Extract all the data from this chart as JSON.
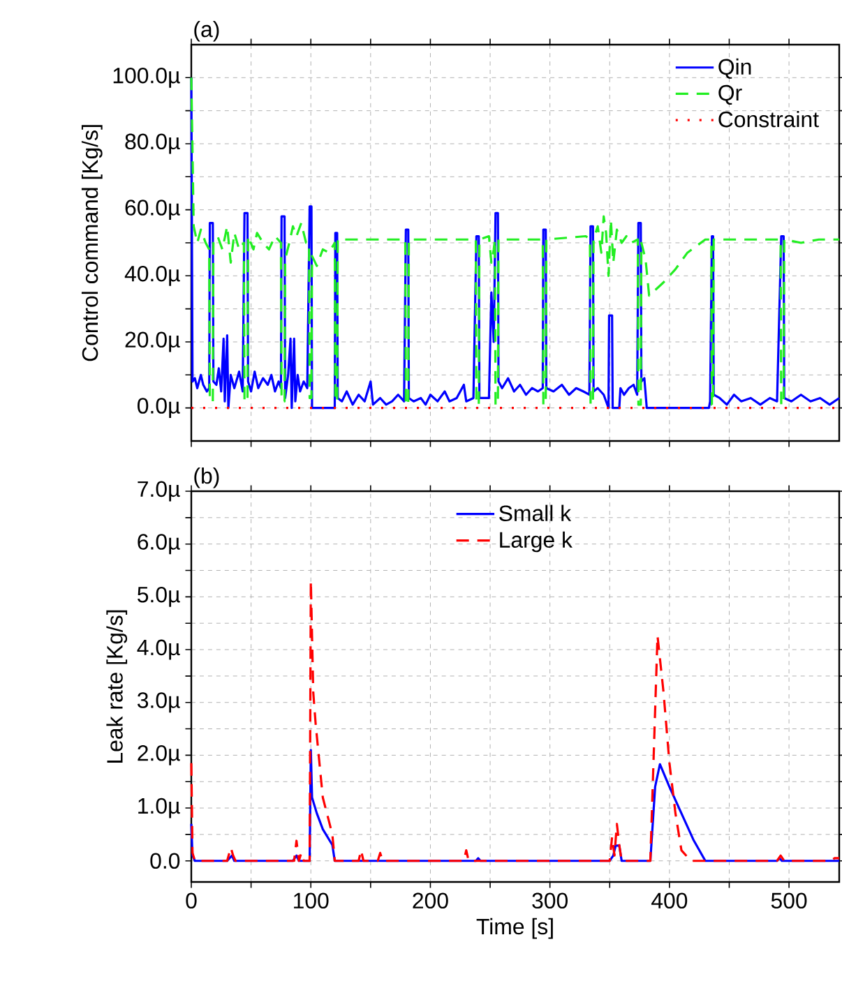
{
  "chart_data": [
    {
      "type": "line",
      "ylabel": "Control command [Kg/s]",
      "annotations": [
        "(a)"
      ],
      "tick_labels": "y",
      "grid": true,
      "legend": "top right",
      "xlim": [
        0,
        542
      ],
      "ylim": [
        -10,
        110
      ],
      "xticks": [
        0,
        {
          "value": 50,
          "label": null
        },
        100,
        {
          "value": 150,
          "label": null
        },
        200,
        {
          "value": 250,
          "label": null
        },
        300,
        {
          "value": 350,
          "label": null
        },
        400,
        {
          "value": 450,
          "label": null
        },
        500
      ],
      "yticks": [
        {
          "value": 0,
          "label": "0.0µ"
        },
        {
          "value": 10,
          "label": null
        },
        {
          "value": 20,
          "label": "20.0µ"
        },
        {
          "value": 30,
          "label": null
        },
        {
          "value": 40,
          "label": "40.0µ"
        },
        {
          "value": 50,
          "label": null
        },
        {
          "value": 60,
          "label": "60.0µ"
        },
        {
          "value": 70,
          "label": null
        },
        {
          "value": 80,
          "label": "80.0µ"
        },
        {
          "value": 90,
          "label": null
        },
        {
          "value": 100,
          "label": "100.0µ"
        }
      ],
      "series": [
        {
          "name": "Qin",
          "color": "#0000ff",
          "line_style": "solid",
          "x": [
            0,
            1,
            3,
            5,
            8,
            10,
            13,
            15,
            15.5,
            18,
            18.5,
            21,
            23,
            25,
            27,
            28,
            30,
            31,
            33,
            36,
            40,
            43,
            44.5,
            47,
            47.5,
            50,
            53,
            56,
            60,
            64,
            67,
            70,
            73,
            75,
            75.5,
            78,
            78.5,
            81,
            83,
            84,
            86,
            87,
            89,
            91,
            94,
            97,
            99,
            100.5,
            101,
            120,
            120.5,
            122,
            122.5,
            126,
            130,
            135,
            140,
            145,
            150,
            152,
            158,
            163,
            168,
            173,
            178,
            179.5,
            181.5,
            182,
            186,
            192,
            196,
            200,
            206,
            212,
            216,
            222,
            228,
            230,
            236,
            238.5,
            240.5,
            241,
            249,
            251,
            253,
            254.5,
            256.5,
            257,
            260,
            265,
            270,
            275,
            280,
            285,
            290,
            294,
            294.5,
            296.5,
            297,
            303,
            310,
            316,
            322,
            328,
            333,
            334,
            336,
            336.5,
            340,
            345,
            349,
            349.5,
            352,
            352.5,
            358,
            359,
            362,
            366,
            370,
            373,
            374,
            376,
            376.5,
            379,
            381,
            433,
            434,
            435.5,
            436.5,
            437,
            442,
            448,
            454,
            460,
            468,
            476,
            484,
            490,
            493.5,
            495.5,
            496,
            502,
            510,
            518,
            526,
            534,
            542
          ],
          "values": [
            100,
            8,
            9,
            6,
            10,
            7,
            5,
            6,
            56,
            56,
            8,
            7,
            12,
            5,
            21,
            2,
            22,
            0,
            10,
            6,
            11,
            5,
            59,
            59,
            8,
            5,
            11,
            6,
            9,
            7,
            10,
            5,
            8,
            6,
            58,
            58,
            3,
            10,
            21,
            0,
            21,
            2,
            10,
            5,
            8,
            6,
            61,
            61,
            0,
            0,
            53,
            53,
            3,
            2,
            5,
            1,
            4,
            2,
            8,
            1,
            3,
            1,
            2,
            4,
            2,
            54,
            54,
            3,
            2,
            3,
            1,
            4,
            2,
            5,
            2,
            3,
            7,
            2,
            3,
            52,
            52,
            3,
            3,
            35,
            20,
            59,
            59,
            8,
            6,
            9,
            5,
            7,
            4,
            6,
            5,
            6,
            54,
            54,
            6,
            5,
            7,
            4,
            6,
            5,
            4,
            55,
            55,
            5,
            6,
            4,
            0,
            28,
            28,
            0,
            0,
            6,
            4,
            6,
            7,
            4,
            56,
            56,
            8,
            9,
            0,
            0,
            2,
            52,
            52,
            4,
            3,
            1,
            4,
            2,
            3,
            1,
            3,
            2,
            52,
            52,
            3,
            2,
            4,
            2,
            3,
            1,
            3
          ]
        },
        {
          "name": "Qr",
          "color": "#22ee22",
          "line_style": "dashed",
          "x": [
            0,
            2,
            5,
            8,
            12,
            15,
            15.5,
            18,
            18.5,
            22,
            26,
            30,
            33,
            36,
            40,
            44,
            44.5,
            47,
            47.5,
            52,
            55,
            60,
            65,
            70,
            75,
            75.5,
            78,
            78.5,
            82,
            85,
            88,
            92,
            96,
            98.5,
            99,
            100.5,
            101,
            105,
            110,
            115,
            120,
            120.5,
            122,
            122.5,
            179,
            179.5,
            181.5,
            182,
            238,
            238.5,
            240.5,
            241,
            249,
            251,
            253,
            254,
            254.5,
            256.5,
            257,
            294,
            294.5,
            296.5,
            297,
            330,
            333.5,
            334,
            336,
            336.5,
            340,
            343,
            345,
            347,
            349,
            351,
            353,
            356,
            360,
            364,
            368,
            373.5,
            374,
            376,
            376.5,
            380,
            383,
            395,
            405,
            415,
            430,
            435,
            435.5,
            436.5,
            437,
            460,
            493,
            493.5,
            495.5,
            496,
            510,
            525,
            542
          ],
          "values": [
            100,
            55,
            50,
            54,
            50,
            48,
            2,
            2,
            50,
            52,
            48,
            55,
            44,
            53,
            48,
            50,
            2,
            2,
            52,
            48,
            53,
            50,
            48,
            52,
            50,
            2,
            2,
            45,
            50,
            55,
            52,
            56,
            50,
            50,
            3,
            3,
            46,
            43,
            48,
            47,
            50,
            2,
            2,
            51,
            51,
            1,
            1,
            51,
            51,
            1,
            1,
            51,
            52,
            44,
            48,
            51,
            1,
            1,
            51,
            51,
            1,
            1,
            51,
            52,
            51,
            1,
            1,
            51,
            55,
            47,
            58,
            53,
            40,
            57,
            44,
            54,
            50,
            52,
            50,
            51,
            1,
            1,
            50,
            45,
            34,
            38,
            42,
            47,
            51,
            51,
            1,
            1,
            51,
            51,
            51,
            1,
            1,
            51,
            50,
            51,
            51
          ]
        },
        {
          "name": "Constraint",
          "color": "#ff0000",
          "line_style": "dotted",
          "x": [
            0,
            542
          ],
          "values": [
            0,
            0
          ]
        }
      ]
    },
    {
      "type": "line",
      "ylabel": "Leak rate [Kg/s]",
      "xlabel": "Time [s]",
      "annotations": [
        "(b)"
      ],
      "grid": true,
      "legend": "top",
      "xlim": [
        0,
        542
      ],
      "ylim": [
        -0.4,
        7
      ],
      "xticks": [
        0,
        {
          "value": 50,
          "label": null
        },
        100,
        {
          "value": 150,
          "label": null
        },
        200,
        {
          "value": 250,
          "label": null
        },
        300,
        {
          "value": 350,
          "label": null
        },
        400,
        {
          "value": 450,
          "label": null
        },
        500
      ],
      "yticks": [
        {
          "value": 0,
          "label": "0.0"
        },
        {
          "value": 0.5,
          "label": null
        },
        {
          "value": 1,
          "label": "1.0µ"
        },
        {
          "value": 1.5,
          "label": null
        },
        {
          "value": 2,
          "label": "2.0µ"
        },
        {
          "value": 2.5,
          "label": null
        },
        {
          "value": 3,
          "label": "3.0µ"
        },
        {
          "value": 3.5,
          "label": null
        },
        {
          "value": 4,
          "label": "4.0µ"
        },
        {
          "value": 4.5,
          "label": null
        },
        {
          "value": 5,
          "label": "5.0µ"
        },
        {
          "value": 5.5,
          "label": null
        },
        {
          "value": 6,
          "label": "6.0µ"
        },
        {
          "value": 6.5,
          "label": null
        },
        {
          "value": 7,
          "label": "7.0µ"
        }
      ],
      "series": [
        {
          "name": "Small k",
          "color": "#0000ff",
          "line_style": "solid",
          "x": [
            0,
            1,
            3,
            30,
            34,
            36,
            85,
            88,
            90,
            99,
            100,
            101,
            105,
            110,
            118,
            120,
            238,
            240,
            242,
            350,
            353,
            355,
            358,
            360,
            384,
            388,
            392,
            400,
            410,
            420,
            430,
            490,
            492,
            494,
            542
          ],
          "values": [
            0.7,
            0.1,
            0,
            0,
            0.1,
            0,
            0,
            0.1,
            0,
            0,
            2.1,
            1.2,
            0.9,
            0.6,
            0.3,
            0,
            0,
            0.05,
            0,
            0,
            0.1,
            0.29,
            0.29,
            0,
            0,
            1.4,
            1.83,
            1.4,
            0.9,
            0.4,
            0,
            0,
            0.05,
            0,
            0
          ]
        },
        {
          "name": "Large k",
          "color": "#ff0000",
          "line_style": "dashed",
          "x": [
            0,
            1,
            3,
            30,
            33,
            35,
            37,
            86,
            88,
            90,
            92,
            94,
            99,
            100,
            102,
            104,
            110,
            118,
            120,
            140,
            142,
            144,
            156,
            158,
            160,
            228,
            230,
            232,
            350,
            352,
            354,
            356,
            358,
            360,
            384,
            390,
            395,
            400,
            405,
            410,
            418,
            490,
            493,
            496,
            535,
            538,
            542
          ],
          "values": [
            1.85,
            0.15,
            0,
            0,
            0.25,
            0.1,
            0,
            0,
            0.38,
            0,
            0.15,
            0,
            0,
            5.3,
            3.2,
            2.6,
            1.2,
            0.5,
            0,
            0,
            0.2,
            0,
            0,
            0.15,
            0,
            0,
            0.2,
            0,
            0,
            0.45,
            0.1,
            0.7,
            0.3,
            0,
            0,
            4.26,
            3.2,
            1.85,
            0.9,
            0.2,
            0,
            0,
            0.1,
            0,
            0,
            0.05,
            0.05
          ]
        }
      ]
    }
  ]
}
